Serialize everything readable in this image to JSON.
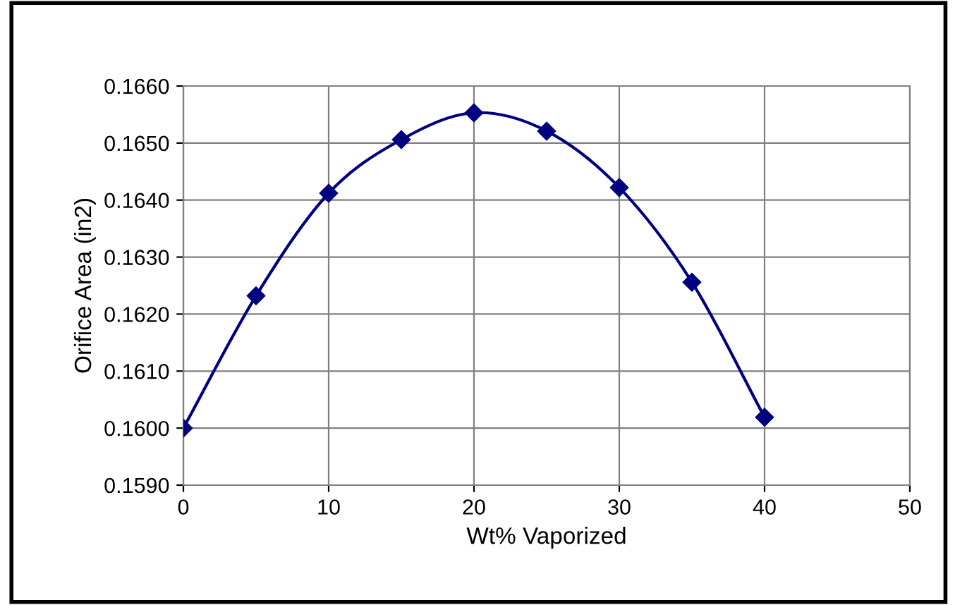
{
  "chart_data": {
    "type": "line",
    "xlabel": "Wt% Vaporized",
    "ylabel": "Orifice Area (in2)",
    "x": [
      0,
      5,
      10,
      15,
      20,
      25,
      30,
      35,
      40
    ],
    "series": [
      {
        "color": "#000080",
        "values": [
          0.16,
          0.16232,
          0.16412,
          0.16506,
          0.16553,
          0.16521,
          0.16422,
          0.16256,
          0.16019
        ]
      }
    ],
    "xlim": [
      0,
      50
    ],
    "xticks": [
      0,
      10,
      20,
      30,
      40,
      50
    ],
    "ylim": [
      0.159,
      0.166
    ],
    "yticks": [
      {
        "value": 0.159,
        "label": "0.1590"
      },
      {
        "value": 0.16,
        "label": "0.1600"
      },
      {
        "value": 0.161,
        "label": "0.1610"
      },
      {
        "value": 0.162,
        "label": "0.1620"
      },
      {
        "value": 0.163,
        "label": "0.1630"
      },
      {
        "value": 0.164,
        "label": "0.1640"
      },
      {
        "value": 0.165,
        "label": "0.1650"
      },
      {
        "value": 0.166,
        "label": "0.1660"
      }
    ],
    "grid": true,
    "marker": "diamond",
    "line_style": "solid",
    "legend": false
  }
}
